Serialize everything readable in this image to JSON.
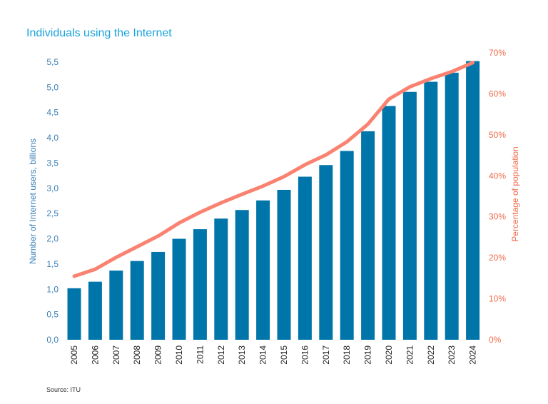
{
  "chart_data": {
    "type": "bar+line",
    "title": "Individuals using the Internet",
    "source": "Source: ITU",
    "categories": [
      "2005",
      "2006",
      "2007",
      "2008",
      "2009",
      "2010",
      "2011",
      "2012",
      "2013",
      "2014",
      "2015",
      "2016",
      "2017",
      "2018",
      "2019",
      "2020",
      "2021",
      "2022",
      "2023",
      "2024"
    ],
    "series": [
      {
        "name": "Number of Internet users, billions",
        "type": "bar",
        "axis": "left",
        "color": "#0075aa",
        "values": [
          1.02,
          1.15,
          1.37,
          1.56,
          1.74,
          2.0,
          2.19,
          2.4,
          2.57,
          2.76,
          2.97,
          3.23,
          3.46,
          3.74,
          4.13,
          4.63,
          4.91,
          5.11,
          5.29,
          5.52
        ]
      },
      {
        "name": "Percentage of population",
        "type": "line",
        "axis": "right",
        "color": "#fa8270",
        "values": [
          15.5,
          17.2,
          20.1,
          22.7,
          25.3,
          28.5,
          31.1,
          33.4,
          35.5,
          37.5,
          39.8,
          42.7,
          45.1,
          48.3,
          52.6,
          58.7,
          61.7,
          63.7,
          65.4,
          67.6
        ]
      }
    ],
    "ylabel_left": "Number of Internet users, billions",
    "ylabel_right": "Percentage of population",
    "ylim_left": [
      0,
      5.5
    ],
    "ylim_right": [
      0,
      70
    ],
    "left_ticks": [
      "0,0",
      "0,5",
      "1,0",
      "1,5",
      "2,0",
      "2,5",
      "3,0",
      "3,5",
      "4,0",
      "4,5",
      "5,0",
      "5,5"
    ],
    "right_ticks": [
      "0%",
      "10%",
      "20%",
      "30%",
      "40%",
      "50%",
      "60%",
      "70%"
    ],
    "grid": false,
    "legend": "none"
  }
}
